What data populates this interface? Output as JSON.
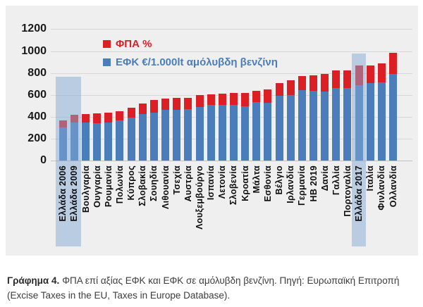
{
  "figure": {
    "caption_label": "Γράφημα 4.",
    "caption_text": "ΦΠΑ επί αξίας ΕΦΚ και ΕΦΚ σε αμόλυβδη βενζίνη. Πηγή: Ευρωπαϊκή Επιτροπή (Excise Taxes in the EU, Taxes in Europe Database)."
  },
  "chart_data": {
    "type": "bar",
    "stacked": true,
    "title": "",
    "xlabel": "",
    "ylabel": "",
    "ylim": [
      0,
      1200
    ],
    "yticks": [
      0,
      200,
      400,
      600,
      800,
      1000,
      1200
    ],
    "grid": true,
    "legend_position": "top-center",
    "legend": [
      {
        "label": "ΦΠΑ %",
        "color": "#dc1f25"
      },
      {
        "label": "ΕΦΚ €/1.000lt αμόλυβδη βενζίνη",
        "color": "#4a7db9"
      }
    ],
    "categories": [
      "Ελλάδα 2006",
      "Ελλάδα 2009",
      "Βουλγαρία",
      "Ουγγαρία",
      "Ρουμανία",
      "Πολωνία",
      "Κύπρος",
      "Σλοβακία",
      "Σουηδία",
      "Λιθουανία",
      "Τσεχία",
      "Αυστρία",
      "Λουξεμβούργο",
      "Ισπανία",
      "Λετονία",
      "Σλοβενία",
      "Κροατία",
      "Μάλτα",
      "Εσθονία",
      "Βέλγιο",
      "Ιρλανδία",
      "Γερμανία",
      "ΗΒ 2019",
      "Δανία",
      "Γαλλία",
      "Πορτογαλία",
      "Ελλάδα 2017",
      "Ιταλία",
      "Φινλανδία",
      "Ολλανδία"
    ],
    "series": [
      {
        "name": "ΕΦΚ €/1.000lt αμόλυβδη βενζίνη",
        "color": "#4a7db9",
        "values": [
          300,
          345,
          345,
          340,
          350,
          365,
          395,
          425,
          440,
          465,
          460,
          470,
          490,
          510,
          505,
          510,
          495,
          535,
          530,
          590,
          600,
          645,
          635,
          630,
          665,
          660,
          690,
          710,
          715,
          790
        ]
      },
      {
        "name": "ΦΠΑ %",
        "color": "#dc1f25",
        "values": [
          65,
          75,
          80,
          90,
          85,
          85,
          90,
          95,
          110,
          100,
          115,
          105,
          110,
          95,
          105,
          110,
          125,
          100,
          120,
          115,
          130,
          125,
          140,
          160,
          155,
          160,
          175,
          160,
          175,
          195
        ]
      }
    ],
    "highlight_bands": [
      {
        "label": "Ελλάδα 2006 / Ελλάδα 2009",
        "start_index": 0,
        "end_index": 1,
        "top_value": 765,
        "color": "rgba(131,170,212,0.5)"
      },
      {
        "label": "Ελλάδα 2017",
        "start_index": 26,
        "end_index": 26,
        "top_value": 975,
        "color": "rgba(131,170,212,0.5)"
      }
    ]
  }
}
